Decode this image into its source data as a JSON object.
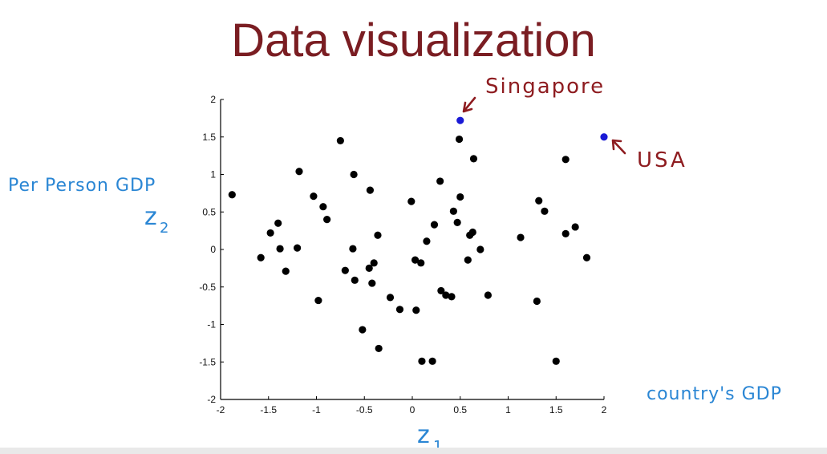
{
  "slide": {
    "title": "Data visualization"
  },
  "annotations": {
    "ylabel_top": "Per Person GDP",
    "ylabel_symbol": "z",
    "ylabel_sub": "2",
    "xlabel_right": "country's GDP",
    "xlabel_symbol": "z",
    "xlabel_sub": "1",
    "singapore": "Singapore",
    "usa": "USA"
  },
  "colors": {
    "title": "#7a1d22",
    "annotation_blue": "#2a86d4",
    "annotation_red": "#8e1c20",
    "point": "#000000",
    "highlight_point": "#1a1ad6"
  },
  "chart_data": {
    "type": "scatter",
    "xlim": [
      -2,
      2
    ],
    "ylim": [
      -2,
      2
    ],
    "xticks": [
      "-2",
      "-1.5",
      "-1",
      "-0.5",
      "0",
      "0.5",
      "1",
      "1.5",
      "2"
    ],
    "yticks": [
      "2",
      "1.5",
      "1",
      "0.5",
      "0",
      "-0.5",
      "-1",
      "-1.5",
      "-2"
    ],
    "grid": false,
    "points": [
      [
        -1.88,
        0.73
      ],
      [
        -1.58,
        -0.11
      ],
      [
        -1.48,
        0.22
      ],
      [
        -1.4,
        0.35
      ],
      [
        -1.38,
        0.01
      ],
      [
        -1.32,
        -0.29
      ],
      [
        -1.2,
        0.02
      ],
      [
        -1.18,
        1.04
      ],
      [
        -1.03,
        0.71
      ],
      [
        -0.98,
        -0.68
      ],
      [
        -0.93,
        0.57
      ],
      [
        -0.89,
        0.4
      ],
      [
        -0.75,
        1.45
      ],
      [
        -0.7,
        -0.28
      ],
      [
        -0.62,
        0.01
      ],
      [
        -0.61,
        1.0
      ],
      [
        -0.6,
        -0.41
      ],
      [
        -0.52,
        -1.07
      ],
      [
        -0.45,
        -0.25
      ],
      [
        -0.44,
        0.79
      ],
      [
        -0.42,
        -0.45
      ],
      [
        -0.4,
        -0.18
      ],
      [
        -0.36,
        0.19
      ],
      [
        -0.35,
        -1.32
      ],
      [
        -0.23,
        -0.64
      ],
      [
        -0.13,
        -0.8
      ],
      [
        -0.01,
        0.64
      ],
      [
        0.03,
        -0.14
      ],
      [
        0.04,
        -0.81
      ],
      [
        0.09,
        -0.18
      ],
      [
        0.1,
        -1.49
      ],
      [
        0.15,
        0.11
      ],
      [
        0.21,
        -1.49
      ],
      [
        0.23,
        0.33
      ],
      [
        0.29,
        0.91
      ],
      [
        0.3,
        -0.55
      ],
      [
        0.35,
        -0.61
      ],
      [
        0.41,
        -0.63
      ],
      [
        0.43,
        0.51
      ],
      [
        0.47,
        0.36
      ],
      [
        0.49,
        1.47
      ],
      [
        0.5,
        0.7
      ],
      [
        0.58,
        -0.14
      ],
      [
        0.6,
        0.19
      ],
      [
        0.63,
        0.23
      ],
      [
        0.64,
        1.21
      ],
      [
        0.71,
        0.0
      ],
      [
        0.79,
        -0.61
      ],
      [
        1.13,
        0.16
      ],
      [
        1.3,
        -0.69
      ],
      [
        1.32,
        0.65
      ],
      [
        1.38,
        0.51
      ],
      [
        1.5,
        -1.49
      ],
      [
        1.6,
        1.2
      ],
      [
        1.6,
        0.21
      ],
      [
        1.7,
        0.3
      ],
      [
        1.82,
        -0.11
      ]
    ],
    "highlighted_points": [
      {
        "x": 0.5,
        "y": 1.72,
        "label": "Singapore"
      },
      {
        "x": 2.0,
        "y": 1.5,
        "label": "USA"
      }
    ]
  }
}
